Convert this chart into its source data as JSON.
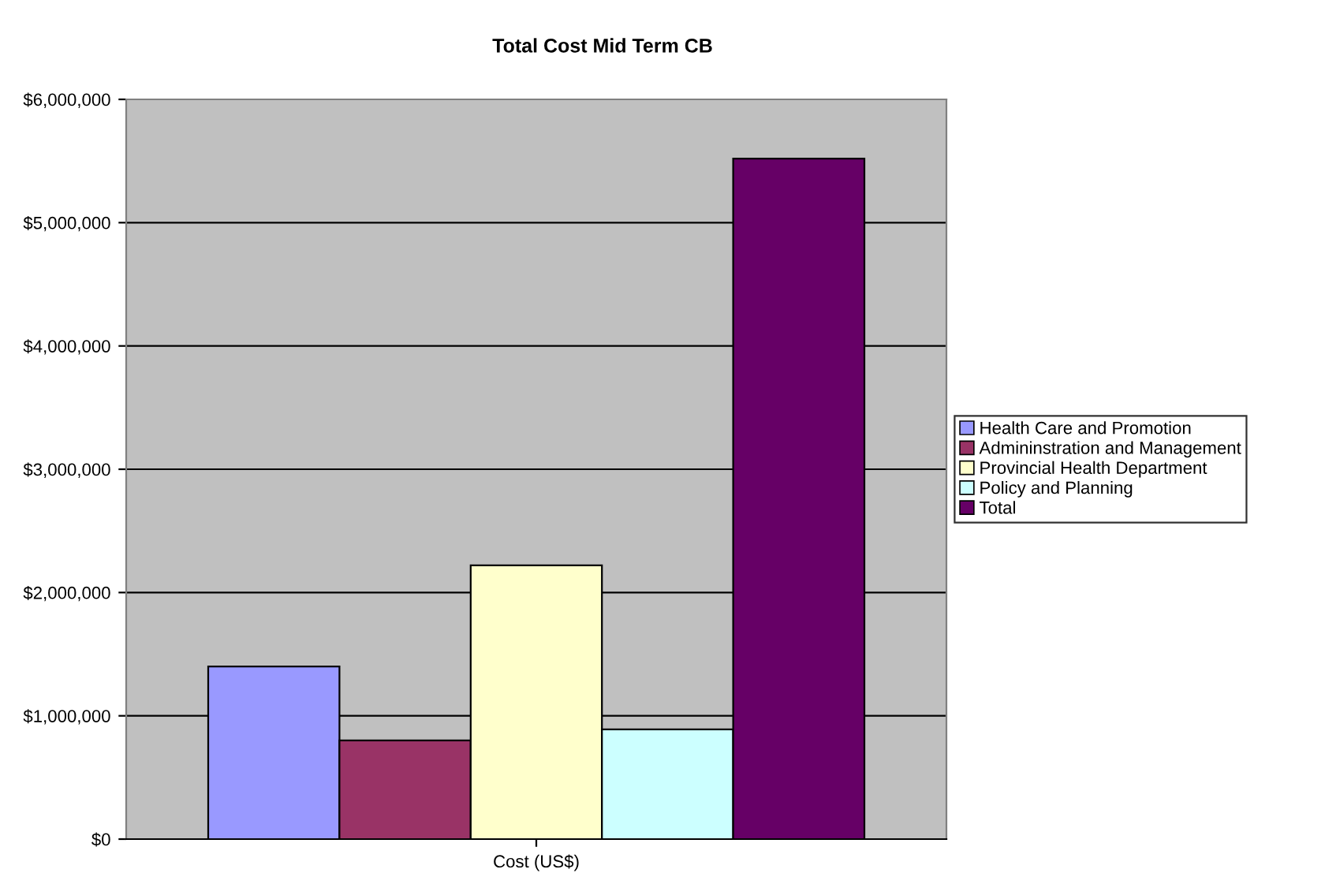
{
  "chart_data": {
    "type": "bar",
    "title": "Total Cost Mid Term CB",
    "categories": [
      "Cost (US$)"
    ],
    "series": [
      {
        "name": "Health Care and Promotion",
        "color": "#9999ff",
        "values": [
          1400000
        ]
      },
      {
        "name": "Admininstration and Management",
        "color": "#993366",
        "values": [
          800000
        ]
      },
      {
        "name": "Provincial Health Department",
        "color": "#ffffcc",
        "values": [
          2220000
        ]
      },
      {
        "name": "Policy and Planning",
        "color": "#ccffff",
        "values": [
          890000
        ]
      },
      {
        "name": "Total",
        "color": "#660066",
        "values": [
          5520000
        ]
      }
    ],
    "ylim": [
      0,
      6000000
    ],
    "yticks": [
      {
        "value": 0,
        "label": "$0"
      },
      {
        "value": 1000000,
        "label": "$1,000,000"
      },
      {
        "value": 2000000,
        "label": "$2,000,000"
      },
      {
        "value": 3000000,
        "label": "$3,000,000"
      },
      {
        "value": 4000000,
        "label": "$4,000,000"
      },
      {
        "value": 5000000,
        "label": "$5,000,000"
      },
      {
        "value": 6000000,
        "label": "$6,000,000"
      }
    ],
    "grid": "y",
    "legend": "right"
  }
}
